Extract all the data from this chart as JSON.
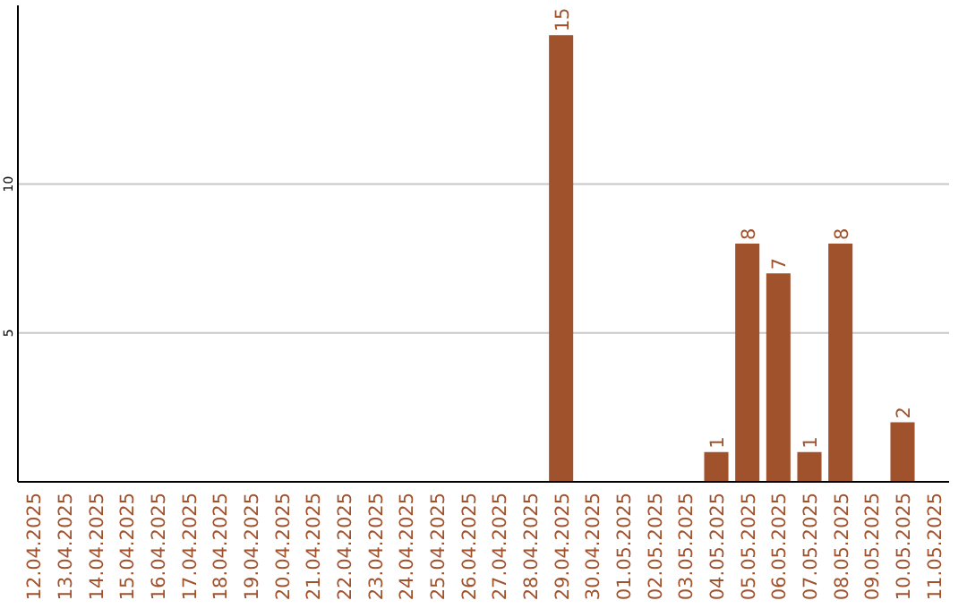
{
  "chart_data": {
    "type": "bar",
    "categories": [
      "12.04.2025",
      "13.04.2025",
      "14.04.2025",
      "15.04.2025",
      "16.04.2025",
      "17.04.2025",
      "18.04.2025",
      "19.04.2025",
      "20.04.2025",
      "21.04.2025",
      "22.04.2025",
      "23.04.2025",
      "24.04.2025",
      "25.04.2025",
      "26.04.2025",
      "27.04.2025",
      "28.04.2025",
      "29.04.2025",
      "30.04.2025",
      "01.05.2025",
      "02.05.2025",
      "03.05.2025",
      "04.05.2025",
      "05.05.2025",
      "06.05.2025",
      "07.05.2025",
      "08.05.2025",
      "09.05.2025",
      "10.05.2025",
      "11.05.2025"
    ],
    "values": [
      0,
      0,
      0,
      0,
      0,
      0,
      0,
      0,
      0,
      0,
      0,
      0,
      0,
      0,
      0,
      0,
      0,
      15,
      0,
      0,
      0,
      0,
      1,
      8,
      7,
      1,
      8,
      0,
      2,
      0
    ],
    "value_labels": [
      null,
      null,
      null,
      null,
      null,
      null,
      null,
      null,
      null,
      null,
      null,
      null,
      null,
      null,
      null,
      null,
      null,
      "15",
      null,
      null,
      null,
      null,
      "1",
      "8",
      "7",
      "1",
      "8",
      null,
      "2",
      null
    ],
    "color": "#a0522d",
    "ylim": [
      0,
      16
    ],
    "yticks": [
      5,
      10
    ],
    "grid": "y"
  }
}
